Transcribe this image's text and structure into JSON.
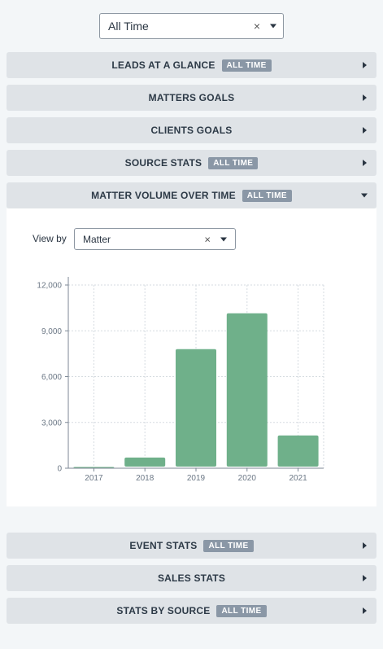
{
  "top_filter": {
    "value": "All Time",
    "clear": "×"
  },
  "panels": [
    {
      "label": "LEADS AT A GLANCE",
      "badge": "ALL TIME"
    },
    {
      "label": "MATTERS GOALS",
      "badge": ""
    },
    {
      "label": "CLIENTS GOALS",
      "badge": ""
    },
    {
      "label": "SOURCE STATS",
      "badge": "ALL TIME"
    },
    {
      "label": "MATTER VOLUME OVER TIME",
      "badge": "ALL TIME"
    },
    {
      "label": "EVENT STATS",
      "badge": "ALL TIME"
    },
    {
      "label": "SALES STATS",
      "badge": ""
    },
    {
      "label": "STATS BY SOURCE",
      "badge": "ALL TIME"
    }
  ],
  "view_by": {
    "label": "View by",
    "value": "Matter",
    "clear": "×"
  },
  "chart_data": {
    "type": "bar",
    "categories": [
      "2017",
      "2018",
      "2019",
      "2020",
      "2021"
    ],
    "values": [
      80,
      700,
      7800,
      10150,
      2150
    ],
    "ylim": [
      0,
      12000
    ],
    "yticks": [
      0,
      3000,
      6000,
      9000,
      12000
    ],
    "ytick_labels": [
      "0",
      "3,000",
      "6,000",
      "9,000",
      "12,000"
    ],
    "grid": true,
    "bar_color": "#6fb08a"
  }
}
